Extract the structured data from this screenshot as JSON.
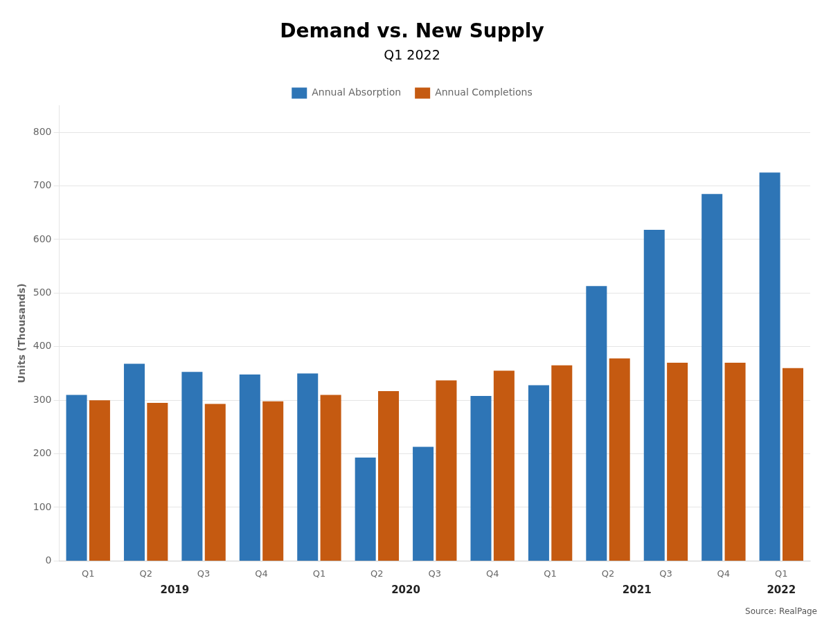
{
  "chart_data": {
    "type": "bar",
    "title": "Demand vs. New Supply",
    "subtitle": "Q1 2022",
    "ylabel": "Units (Thousands)",
    "source": "Source: RealPage",
    "categories": [
      "Q1",
      "Q2",
      "Q3",
      "Q4",
      "Q1",
      "Q2",
      "Q3",
      "Q4",
      "Q1",
      "Q2",
      "Q3",
      "Q4",
      "Q1"
    ],
    "category_groups": [
      {
        "label": "2019",
        "size": 4
      },
      {
        "label": "2020",
        "size": 4
      },
      {
        "label": "2021",
        "size": 4
      },
      {
        "label": "2022",
        "size": 1
      }
    ],
    "series": [
      {
        "name": "Annual Absorption",
        "color": "#2E75B6",
        "values": [
          310,
          368,
          353,
          348,
          350,
          193,
          213,
          308,
          328,
          513,
          618,
          685,
          725
        ]
      },
      {
        "name": "Annual Completions",
        "color": "#C55A11",
        "values": [
          300,
          295,
          293,
          298,
          310,
          317,
          337,
          355,
          365,
          378,
          370,
          370,
          360
        ]
      }
    ],
    "ylim": [
      0,
      850
    ],
    "yticks": [
      0,
      100,
      200,
      300,
      400,
      500,
      600,
      700,
      800
    ],
    "grid": true,
    "legend": "top"
  }
}
